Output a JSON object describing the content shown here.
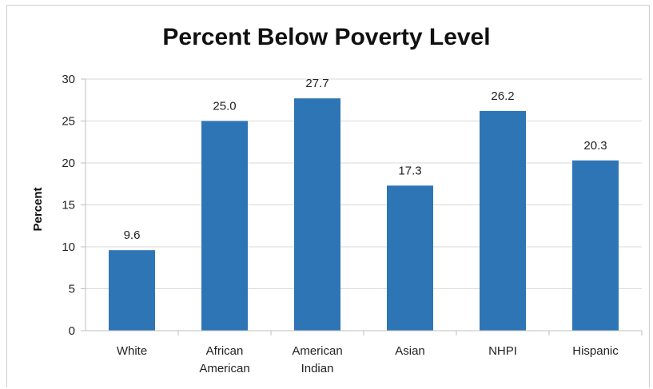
{
  "chart_data": {
    "type": "bar",
    "title": "Percent Below Poverty Level",
    "xlabel": "",
    "ylabel": "Percent",
    "ylim": [
      0,
      30
    ],
    "yticks": [
      0,
      5,
      10,
      15,
      20,
      25,
      30
    ],
    "categories": [
      [
        "White"
      ],
      [
        "African",
        "American"
      ],
      [
        "American",
        "Indian"
      ],
      [
        "Asian"
      ],
      [
        "NHPI"
      ],
      [
        "Hispanic"
      ]
    ],
    "values": [
      9.6,
      25.0,
      27.7,
      17.3,
      26.2,
      20.3
    ],
    "data_labels": [
      "9.6",
      "25.0",
      "27.7",
      "17.3",
      "26.2",
      "20.3"
    ],
    "bar_color": "#2e75b6",
    "grid": true,
    "legend": "none"
  }
}
